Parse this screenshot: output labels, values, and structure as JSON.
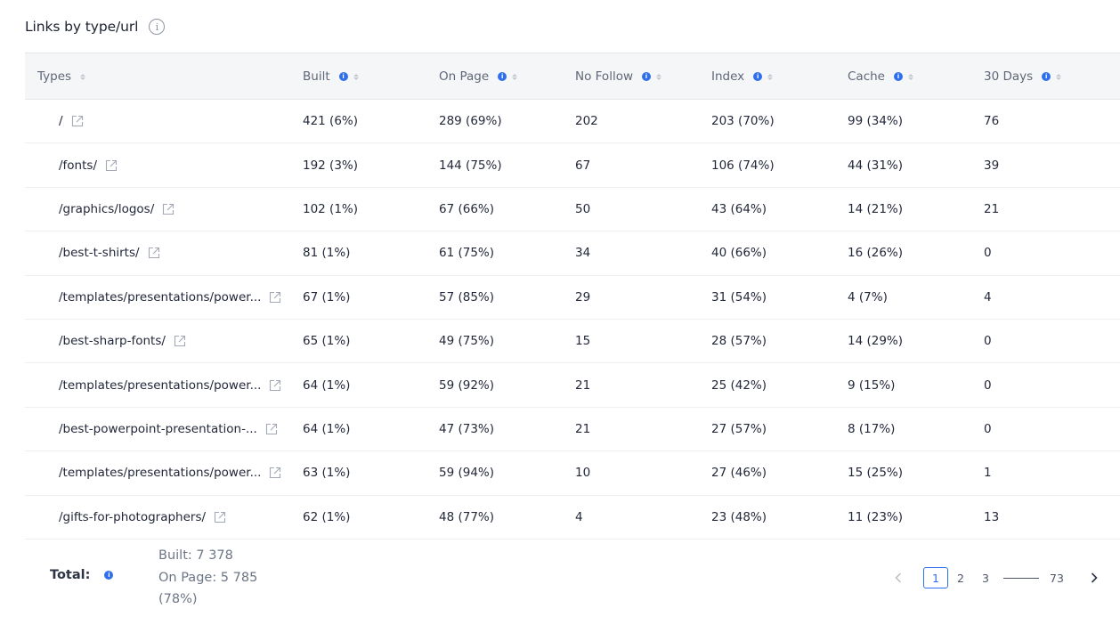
{
  "header": {
    "title": "Links by type/url",
    "info_glyph": "i"
  },
  "table": {
    "columns": [
      {
        "label": "Types",
        "info": false
      },
      {
        "label": "Built",
        "info": true
      },
      {
        "label": "On Page",
        "info": true
      },
      {
        "label": "No Follow",
        "info": true
      },
      {
        "label": "Index",
        "info": true
      },
      {
        "label": "Cache",
        "info": true
      },
      {
        "label": "30 Days",
        "info": true
      }
    ],
    "rows": [
      {
        "type": "/",
        "built": "421 (6%)",
        "on_page": "289 (69%)",
        "no_follow": "202",
        "index": "203 (70%)",
        "cache": "99 (34%)",
        "days30": "76"
      },
      {
        "type": "/fonts/",
        "built": "192 (3%)",
        "on_page": "144 (75%)",
        "no_follow": "67",
        "index": "106 (74%)",
        "cache": "44 (31%)",
        "days30": "39"
      },
      {
        "type": "/graphics/logos/",
        "built": "102 (1%)",
        "on_page": "67 (66%)",
        "no_follow": "50",
        "index": "43 (64%)",
        "cache": "14 (21%)",
        "days30": "21"
      },
      {
        "type": "/best-t-shirts/",
        "built": "81 (1%)",
        "on_page": "61 (75%)",
        "no_follow": "34",
        "index": "40 (66%)",
        "cache": "16 (26%)",
        "days30": "0"
      },
      {
        "type": "/templates/presentations/power...",
        "built": "67 (1%)",
        "on_page": "57 (85%)",
        "no_follow": "29",
        "index": "31 (54%)",
        "cache": "4 (7%)",
        "days30": "4"
      },
      {
        "type": "/best-sharp-fonts/",
        "built": "65 (1%)",
        "on_page": "49 (75%)",
        "no_follow": "15",
        "index": "28 (57%)",
        "cache": "14 (29%)",
        "days30": "0"
      },
      {
        "type": "/templates/presentations/power...",
        "built": "64 (1%)",
        "on_page": "59 (92%)",
        "no_follow": "21",
        "index": "25 (42%)",
        "cache": "9 (15%)",
        "days30": "0"
      },
      {
        "type": "/best-powerpoint-presentation-...",
        "built": "64 (1%)",
        "on_page": "47 (73%)",
        "no_follow": "21",
        "index": "27 (57%)",
        "cache": "8 (17%)",
        "days30": "0"
      },
      {
        "type": "/templates/presentations/power...",
        "built": "63 (1%)",
        "on_page": "59 (94%)",
        "no_follow": "10",
        "index": "27 (46%)",
        "cache": "15 (25%)",
        "days30": "1"
      },
      {
        "type": "/gifts-for-photographers/",
        "built": "62 (1%)",
        "on_page": "48 (77%)",
        "no_follow": "4",
        "index": "23 (48%)",
        "cache": "11 (23%)",
        "days30": "13"
      }
    ]
  },
  "totals": {
    "label": "Total:",
    "built": "Built: 7 378",
    "on_page": "On Page: 5 785",
    "on_page_pct": "(78%)"
  },
  "pagination": {
    "pages": [
      "1",
      "2",
      "3"
    ],
    "last": "73",
    "current": "1"
  },
  "colors": {
    "accent": "#2f6fed",
    "header_bg": "#f5f6f8",
    "text": "#23283a",
    "muted": "#6d7585"
  },
  "icons": [
    "info-outline-icon",
    "info-dot-icon",
    "sort-icon",
    "external-link-icon",
    "chevron-left-icon",
    "chevron-right-icon"
  ]
}
